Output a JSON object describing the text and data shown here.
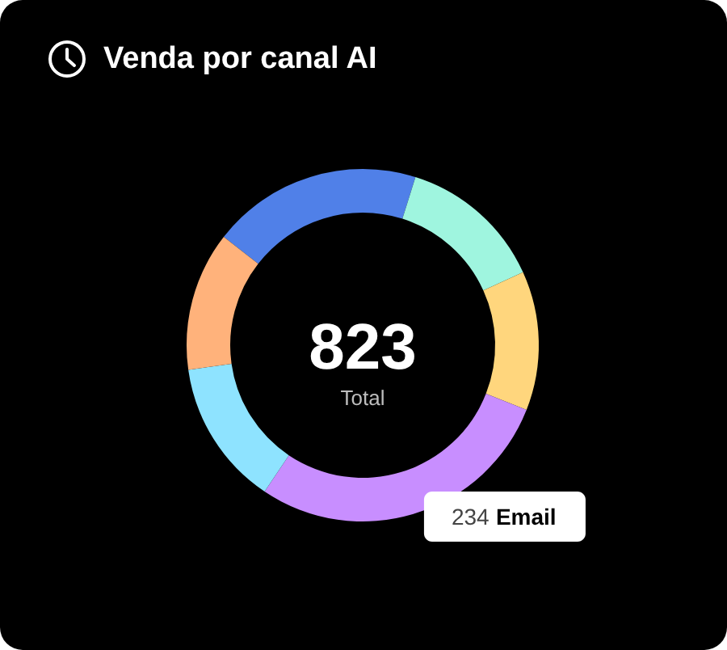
{
  "chart_data": {
    "type": "donut",
    "title": "Venda por canal AI",
    "categories": [
      null,
      null,
      null,
      "Email",
      null,
      null
    ],
    "values": [
      159,
      110,
      105,
      234,
      110,
      105
    ],
    "colors": [
      "#5080e8",
      "#9ff5df",
      "#ffd67d",
      "#c88eff",
      "#8ee3ff",
      "#ffb27b"
    ],
    "value_labels": [
      null,
      null,
      null,
      "234",
      null,
      null
    ],
    "annotations": [
      "823",
      "Total"
    ]
  }
}
